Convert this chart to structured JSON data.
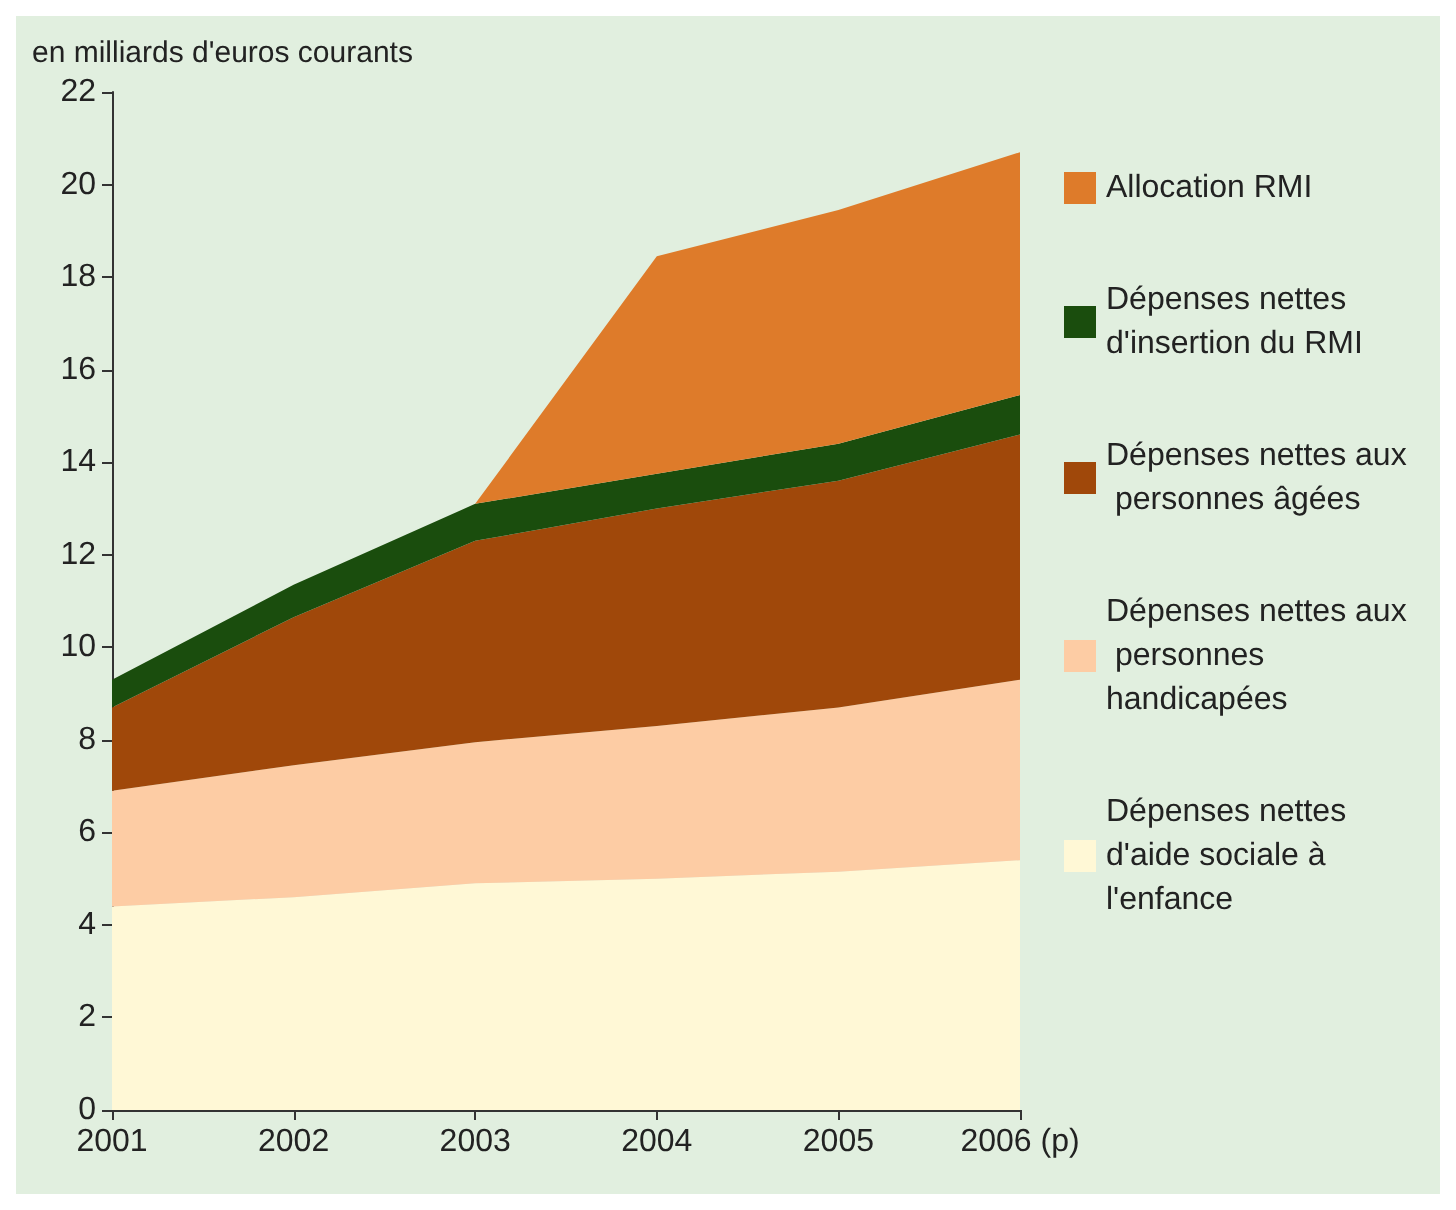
{
  "chart_data": {
    "type": "area",
    "stacked": true,
    "ylabel": "en milliards d'euros courants",
    "categories": [
      "2001",
      "2002",
      "2003",
      "2004",
      "2005",
      "2006 (p)"
    ],
    "series": [
      {
        "name": "Dépenses nettes d'aide sociale à l'enfance",
        "color": "#fff8d6",
        "values": [
          4.4,
          4.6,
          4.9,
          5.0,
          5.15,
          5.4
        ]
      },
      {
        "name": "Dépenses nettes aux personnes handicapées",
        "color": "#fdcca4",
        "values": [
          2.5,
          2.85,
          3.05,
          3.3,
          3.55,
          3.9
        ]
      },
      {
        "name": "Dépenses nettes aux personnes âgées",
        "color": "#a0480a",
        "values": [
          1.8,
          3.2,
          4.35,
          4.7,
          4.9,
          5.3
        ]
      },
      {
        "name": "Dépenses nettes d'insertion du RMI",
        "color": "#1a4d0d",
        "values": [
          0.6,
          0.7,
          0.8,
          0.75,
          0.8,
          0.85
        ]
      },
      {
        "name": "Allocation RMI",
        "color": "#de7b2a",
        "values": [
          null,
          null,
          0,
          4.7,
          5.05,
          5.25
        ]
      }
    ],
    "ylim": [
      0,
      22
    ],
    "yticks": [
      0,
      2,
      4,
      6,
      8,
      10,
      12,
      14,
      16,
      18,
      20,
      22
    ],
    "grid": false,
    "legend": "right"
  }
}
